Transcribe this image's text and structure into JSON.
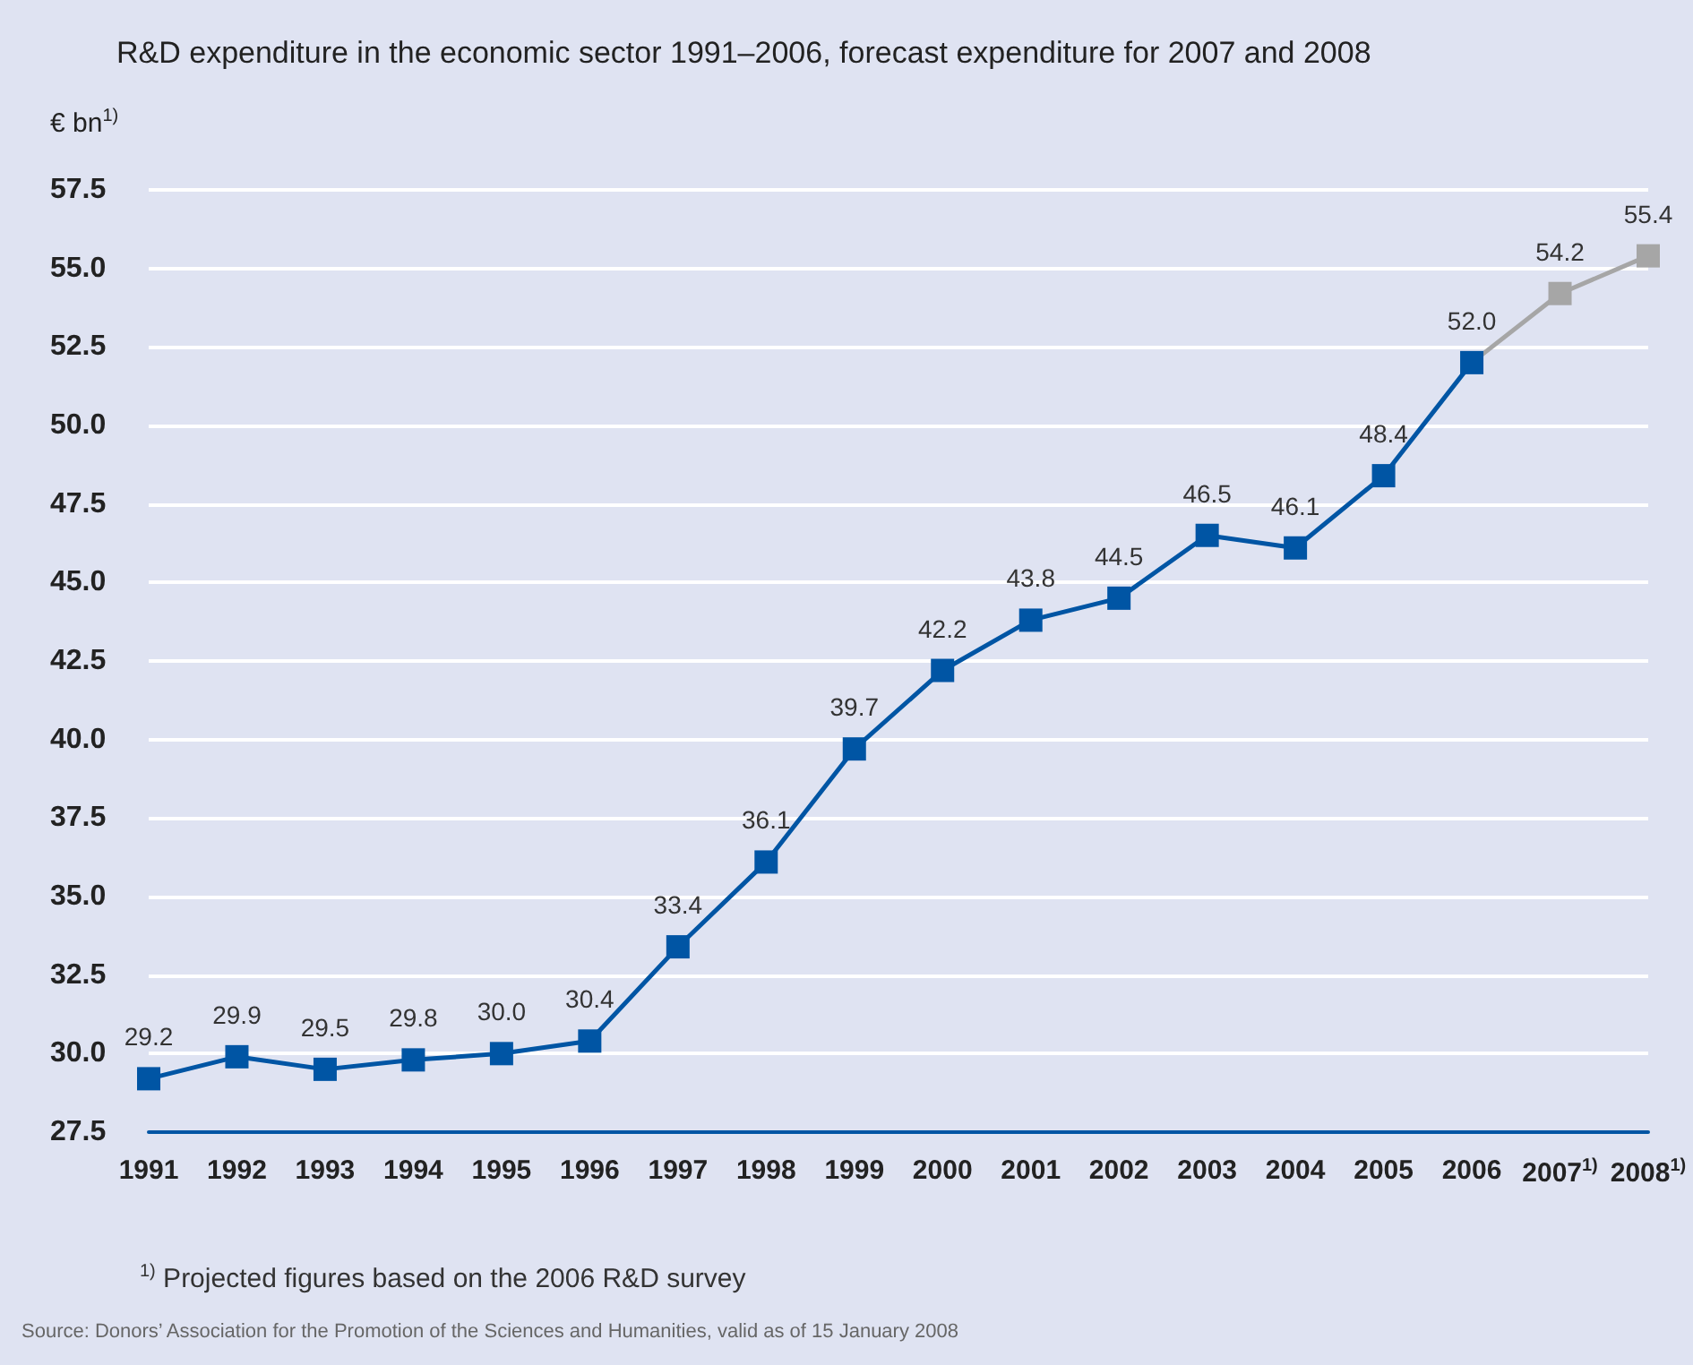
{
  "chart_data": {
    "type": "line",
    "title": "R&D expenditure in the economic sector 1991–2006, forecast expenditure for 2007 and 2008",
    "ylabel": "€ bn$^{1)}$",
    "categories": [
      "1991",
      "1992",
      "1993",
      "1994",
      "1995",
      "1996",
      "1997",
      "1998",
      "1999",
      "2000",
      "2001",
      "2002",
      "2003",
      "2004",
      "2005",
      "2006",
      "2007$^{1)}$",
      "2008$^{1)}$"
    ],
    "series": [
      {
        "values": [
          29.2,
          29.9,
          29.5,
          29.8,
          30.0,
          30.4,
          33.4,
          36.1,
          39.7,
          42.2,
          43.8,
          44.5,
          46.5,
          46.1,
          48.4,
          52.0,
          54.2,
          55.4
        ],
        "value_labels": [
          "29.2",
          "29.9",
          "29.5",
          "29.8",
          "30.0",
          "30.4",
          "33.4",
          "36.1",
          "39.7",
          "42.2",
          "43.8",
          "44.5",
          "46.5",
          "46.1",
          "48.4",
          "52.0",
          "54.2",
          "55.4"
        ],
        "colors": [
          "#0055a4",
          "#0055a4",
          "#0055a4",
          "#0055a4",
          "#0055a4",
          "#0055a4",
          "#0055a4",
          "#0055a4",
          "#0055a4",
          "#0055a4",
          "#0055a4",
          "#0055a4",
          "#0055a4",
          "#0055a4",
          "#0055a4",
          "#0055a4",
          "#a6a6a6",
          "#a6a6a6"
        ]
      }
    ],
    "ylim": [
      27.5,
      57.5
    ],
    "yticks": [
      {
        "value": 27.5,
        "label": "27.5"
      },
      {
        "value": 30,
        "label": "30.0"
      },
      {
        "value": 32.5,
        "label": "32.5"
      },
      {
        "value": 35,
        "label": "35.0"
      },
      {
        "value": 37.5,
        "label": "37.5"
      },
      {
        "value": 40,
        "label": "40.0"
      },
      {
        "value": 42.5,
        "label": "42.5"
      },
      {
        "value": 45,
        "label": "45.0"
      },
      {
        "value": 47.5,
        "label": "47.5"
      },
      {
        "value": 50,
        "label": "50.0"
      },
      {
        "value": 52.5,
        "label": "52.5"
      },
      {
        "value": 55,
        "label": "55.0"
      },
      {
        "value": 57.5,
        "label": "57.5"
      }
    ],
    "grid": "y",
    "marker": "square",
    "line_style": "solid",
    "annotations": [
      "$^{1)}$ Projected figures based on the 2006 R&D survey",
      "Source: Donors’ Association for the Promotion of the Sciences and Humanities, valid as of 15 January 2008"
    ]
  }
}
